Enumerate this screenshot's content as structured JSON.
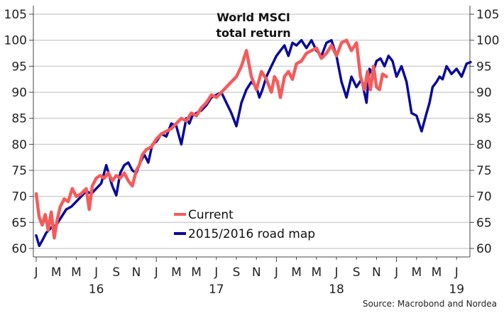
{
  "chart_data": {
    "type": "line",
    "title": [
      "World MSCI",
      "total return"
    ],
    "xlabel": "",
    "ylabel": "",
    "ylim": [
      60,
      105
    ],
    "yticks": [
      60,
      65,
      70,
      75,
      80,
      85,
      90,
      95,
      100,
      105
    ],
    "ytick_labels": [
      "60",
      "65",
      "70",
      "75",
      "80",
      "85",
      "90",
      "95",
      "100",
      "105"
    ],
    "grid": true,
    "x_unit": "months since Jan 2016",
    "xlim": [
      0,
      43.5
    ],
    "xticks": [
      {
        "t": 0,
        "label": "J"
      },
      {
        "t": 2,
        "label": "M"
      },
      {
        "t": 4,
        "label": "M"
      },
      {
        "t": 6,
        "label": "J"
      },
      {
        "t": 8,
        "label": "S"
      },
      {
        "t": 10,
        "label": "N"
      },
      {
        "t": 12,
        "label": "J"
      },
      {
        "t": 14,
        "label": "M"
      },
      {
        "t": 16,
        "label": "M"
      },
      {
        "t": 18,
        "label": "J"
      },
      {
        "t": 20,
        "label": "S"
      },
      {
        "t": 22,
        "label": "N"
      },
      {
        "t": 24,
        "label": "J"
      },
      {
        "t": 26,
        "label": "M"
      },
      {
        "t": 28,
        "label": "M"
      },
      {
        "t": 30,
        "label": "J"
      },
      {
        "t": 32,
        "label": "S"
      },
      {
        "t": 34,
        "label": "N"
      },
      {
        "t": 36,
        "label": "J"
      },
      {
        "t": 38,
        "label": "M"
      },
      {
        "t": 40,
        "label": "M"
      },
      {
        "t": 42,
        "label": "J"
      }
    ],
    "year_labels": [
      {
        "t": 6,
        "label": "16"
      },
      {
        "t": 18,
        "label": "17"
      },
      {
        "t": 30,
        "label": "18"
      },
      {
        "t": 42,
        "label": "19"
      }
    ],
    "legend": {
      "placement": "bottom-center",
      "entries": [
        {
          "name": "Current",
          "color": "#f45b5b"
        },
        {
          "name": "2015/2016 road map",
          "color": "#0a0a9a"
        }
      ]
    },
    "series": [
      {
        "name": "2015/2016 road map",
        "color": "#0a0a9a",
        "t": [
          0,
          0.3,
          0.6,
          1.0,
          1.5,
          2.0,
          2.5,
          3.0,
          3.5,
          4.0,
          4.5,
          5.0,
          5.5,
          6.0,
          6.5,
          7.0,
          7.3,
          7.6,
          8.0,
          8.4,
          8.8,
          9.2,
          9.6,
          10.0,
          10.4,
          10.8,
          11.2,
          11.6,
          12.0,
          12.5,
          13.0,
          13.5,
          14.0,
          14.5,
          15.0,
          15.3,
          15.6,
          16.0,
          16.5,
          17.0,
          17.5,
          18.0,
          18.5,
          19.0,
          19.5,
          20.0,
          20.5,
          21.0,
          21.5,
          22.0,
          22.3,
          22.6,
          23.0,
          23.5,
          24.0,
          24.4,
          24.8,
          25.2,
          25.6,
          26.0,
          26.5,
          27.0,
          27.5,
          28.0,
          28.5,
          29.0,
          29.5,
          30.0,
          30.5,
          31.0,
          31.5,
          32.0,
          32.5,
          33.0,
          33.3,
          33.6,
          34.0,
          34.4,
          34.8,
          35.2,
          35.6,
          36.0,
          36.5,
          37.0,
          37.5,
          38.0,
          38.5,
          39.0,
          39.3,
          39.6,
          40.0,
          40.3,
          40.6,
          41.0,
          41.5,
          42.0,
          42.5,
          43.0,
          43.4
        ],
        "values": [
          62.5,
          60.5,
          61.5,
          63,
          64,
          64.5,
          66,
          67.5,
          68,
          69,
          70,
          71,
          70.5,
          71.5,
          72.5,
          76,
          74,
          72,
          70.2,
          74.5,
          76,
          76.5,
          75,
          74.5,
          76.5,
          78,
          76.5,
          80,
          80.5,
          82,
          81.5,
          84,
          83.5,
          80,
          85,
          84,
          85.5,
          86,
          86.5,
          87.5,
          89,
          89.5,
          90,
          88,
          86,
          83.5,
          88,
          90.5,
          92,
          91,
          89,
          90.5,
          93,
          95,
          97,
          98,
          99,
          97,
          99.5,
          99,
          100,
          98.5,
          100,
          98,
          97,
          99.5,
          100,
          97,
          92,
          89,
          93,
          91,
          92.5,
          88,
          94.5,
          93.5,
          96,
          96.5,
          95,
          97,
          96,
          93,
          95,
          92,
          86,
          85.5,
          82.5,
          86,
          88,
          91,
          92,
          93,
          92.5,
          95,
          93.5,
          94.5,
          93,
          95.5,
          95.8
        ]
      },
      {
        "name": "Current",
        "color": "#f45b5b",
        "t": [
          0,
          0.3,
          0.6,
          0.9,
          1.2,
          1.5,
          1.8,
          2.1,
          2.4,
          2.8,
          3.2,
          3.6,
          4.0,
          4.5,
          5.0,
          5.3,
          5.6,
          6.0,
          6.4,
          6.8,
          7.2,
          7.6,
          8.0,
          8.4,
          8.8,
          9.2,
          9.6,
          10.0,
          10.3,
          10.6,
          11.0,
          11.5,
          12.0,
          12.5,
          13.0,
          13.5,
          14.0,
          14.5,
          15.0,
          15.5,
          16.0,
          16.5,
          17.0,
          17.5,
          18.0,
          18.5,
          19.0,
          19.5,
          20.0,
          20.5,
          21.0,
          21.5,
          22.0,
          22.5,
          23.0,
          23.5,
          23.8,
          24.1,
          24.4,
          24.8,
          25.2,
          25.6,
          26.0,
          26.5,
          27.0,
          27.5,
          28.0,
          28.5,
          29.0,
          29.5,
          30.0,
          30.5,
          31.0,
          31.5,
          32.0,
          32.4,
          32.8,
          33.1,
          33.4,
          33.7,
          34.0,
          34.3,
          34.6,
          35.0
        ],
        "values": [
          70.5,
          66,
          64.5,
          66.5,
          63.5,
          67,
          62,
          65.5,
          68,
          69.5,
          69,
          71.5,
          70,
          70.5,
          71.5,
          67.5,
          72,
          73.5,
          74,
          73.5,
          74.5,
          73,
          74,
          73.5,
          74.5,
          73,
          72,
          75,
          76,
          78,
          79,
          79.5,
          81,
          82,
          82.5,
          83,
          84,
          85,
          84.5,
          86,
          85.5,
          87,
          88,
          89.5,
          89,
          90,
          91,
          92,
          93,
          95,
          98,
          93,
          90.5,
          94,
          92.5,
          90,
          93,
          92,
          89,
          93,
          94,
          92.5,
          95.5,
          96,
          97.5,
          98,
          98.5,
          96.5,
          97.5,
          99,
          97,
          99.5,
          100,
          98,
          99.5,
          93,
          90.5,
          94,
          90.5,
          95,
          91,
          90.5,
          93.5,
          93
        ]
      }
    ]
  },
  "source": "Source: Macrobond and Nordea"
}
